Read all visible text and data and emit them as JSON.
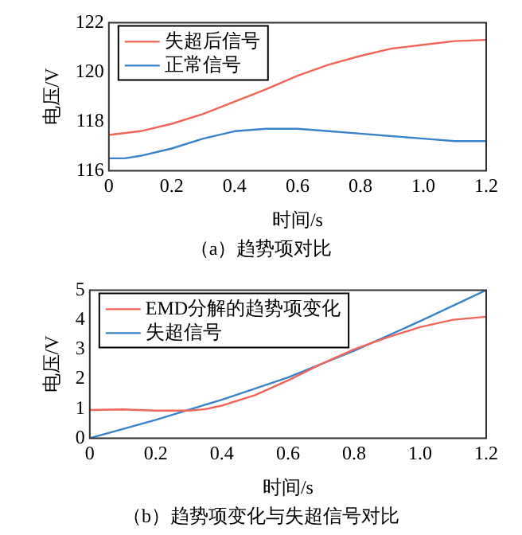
{
  "chart_data": [
    {
      "type": "line",
      "xlabel": "时间/s",
      "ylabel": "电压/V",
      "annotations": [
        "（a）趋势项对比"
      ],
      "legend": "top left",
      "grid": false,
      "marker": "none",
      "line_style": "solid",
      "xlim": [
        0,
        1.2
      ],
      "ylim": [
        116,
        122
      ],
      "xticks": [
        0,
        0.2,
        0.4,
        0.6,
        0.8,
        {
          "value": 1,
          "label": "1.0"
        },
        1.2
      ],
      "yticks": [
        116,
        118,
        120,
        122
      ],
      "series": [
        {
          "name": "失超后信号",
          "color": "#f0645a",
          "x": [
            0,
            0.1,
            0.2,
            0.3,
            0.4,
            0.5,
            0.6,
            0.7,
            0.8,
            0.9,
            1.0,
            1.1,
            1.2
          ],
          "values": [
            117.45,
            117.6,
            117.9,
            118.3,
            118.8,
            119.3,
            119.85,
            120.3,
            120.65,
            120.95,
            121.1,
            121.25,
            121.3
          ]
        },
        {
          "name": "正常信号",
          "color": "#3c82c8",
          "x": [
            0,
            0.05,
            0.1,
            0.2,
            0.3,
            0.4,
            0.5,
            0.6,
            0.7,
            0.8,
            0.9,
            1.0,
            1.1,
            1.2
          ],
          "values": [
            116.5,
            116.5,
            116.6,
            116.9,
            117.3,
            117.6,
            117.7,
            117.7,
            117.6,
            117.5,
            117.4,
            117.3,
            117.2,
            117.2
          ]
        }
      ]
    },
    {
      "type": "line",
      "xlabel": "时间/s",
      "ylabel": "电压/V",
      "annotations": [
        "（b）趋势项变化与失超信号对比"
      ],
      "legend": "top left",
      "grid": false,
      "marker": "none",
      "line_style": "solid",
      "xlim": [
        0,
        1.2
      ],
      "ylim": [
        0,
        5
      ],
      "xticks": [
        0,
        0.2,
        0.4,
        0.6,
        0.8,
        {
          "value": 1,
          "label": "1.0"
        },
        1.2
      ],
      "yticks": [
        0,
        1,
        2,
        3,
        4,
        5
      ],
      "series": [
        {
          "name": "EMD分解的趋势项变化",
          "color": "#f0645a",
          "x": [
            0,
            0.1,
            0.2,
            0.3,
            0.35,
            0.4,
            0.5,
            0.6,
            0.7,
            0.8,
            0.9,
            1.0,
            1.1,
            1.2
          ],
          "values": [
            0.95,
            0.97,
            0.93,
            0.93,
            0.98,
            1.1,
            1.45,
            1.95,
            2.5,
            3.0,
            3.4,
            3.75,
            4.0,
            4.1
          ]
        },
        {
          "name": "失超信号",
          "color": "#3c82c8",
          "x": [
            0,
            0.2,
            0.4,
            0.6,
            0.8,
            1.0,
            1.2
          ],
          "values": [
            0,
            0.62,
            1.3,
            2.05,
            2.95,
            3.95,
            5
          ]
        }
      ]
    }
  ]
}
